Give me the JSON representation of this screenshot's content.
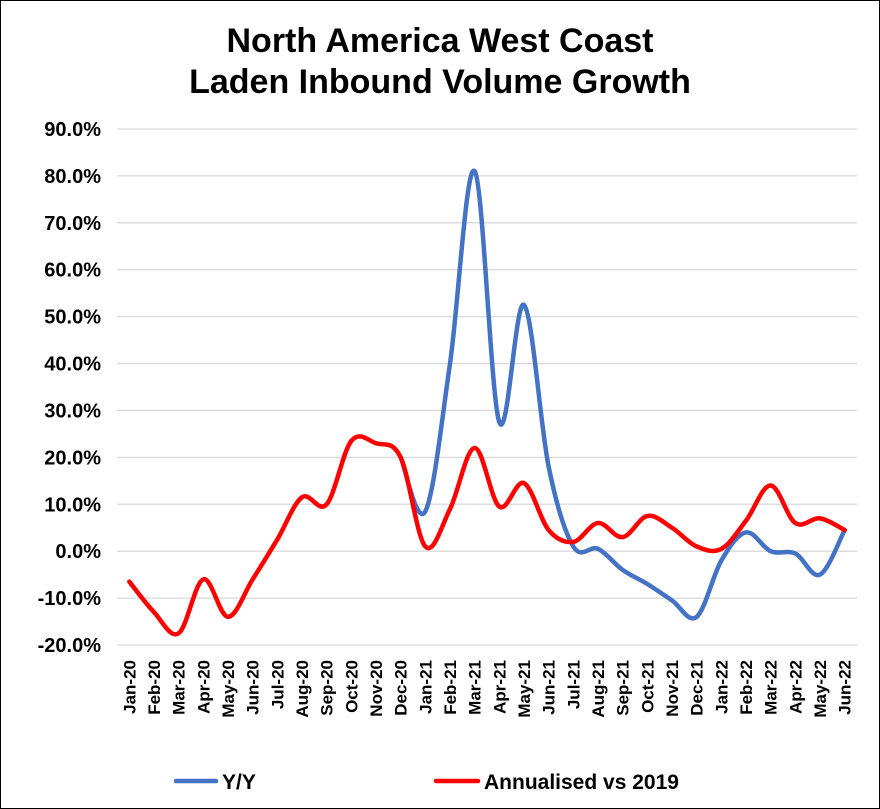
{
  "chart_data": {
    "type": "line",
    "title": [
      "North America West Coast",
      "Laden Inbound Volume Growth"
    ],
    "categories": [
      "Jan-20",
      "Feb-20",
      "Mar-20",
      "Apr-20",
      "May-20",
      "Jun-20",
      "Jul-20",
      "Aug-20",
      "Sep-20",
      "Oct-20",
      "Nov-20",
      "Dec-20",
      "Jan-21",
      "Feb-21",
      "Mar-21",
      "Apr-21",
      "May-21",
      "Jun-21",
      "Jul-21",
      "Aug-21",
      "Sep-21",
      "Oct-21",
      "Nov-21",
      "Dec-21",
      "Jan-22",
      "Feb-22",
      "Mar-22",
      "Apr-22",
      "May-22",
      "Jun-22"
    ],
    "ylim": [
      -20,
      90
    ],
    "yticks": [
      "90.0%",
      "80.0%",
      "70.0%",
      "60.0%",
      "50.0%",
      "40.0%",
      "30.0%",
      "20.0%",
      "10.0%",
      "0.0%",
      "-10.0%",
      "-20.0%"
    ],
    "ytick_values": [
      90,
      80,
      70,
      60,
      50,
      40,
      30,
      20,
      10,
      0,
      -10,
      -20
    ],
    "grid": true,
    "legend_position": "bottom",
    "series": [
      {
        "name": "Y/Y",
        "color": "#4472C4",
        "values": [
          null,
          null,
          null,
          null,
          null,
          null,
          null,
          null,
          null,
          null,
          null,
          20.0,
          8.5,
          40.0,
          81.0,
          27.5,
          52.5,
          18.0,
          1.0,
          0.5,
          -4.0,
          -7.0,
          -10.5,
          -14.0,
          -2.0,
          4.0,
          0.0,
          -0.5,
          -5.0,
          4.5
        ]
      },
      {
        "name": "Annualised vs 2019",
        "color": "#FF0000",
        "values": [
          -6.5,
          -13.0,
          -17.5,
          -6.0,
          -14.0,
          -6.0,
          2.5,
          11.5,
          10.0,
          23.5,
          23.0,
          20.0,
          1.0,
          9.0,
          22.0,
          9.5,
          14.5,
          4.5,
          2.0,
          6.0,
          3.0,
          7.5,
          5.0,
          1.0,
          0.5,
          6.5,
          14.0,
          6.0,
          7.0,
          4.5
        ]
      }
    ]
  }
}
